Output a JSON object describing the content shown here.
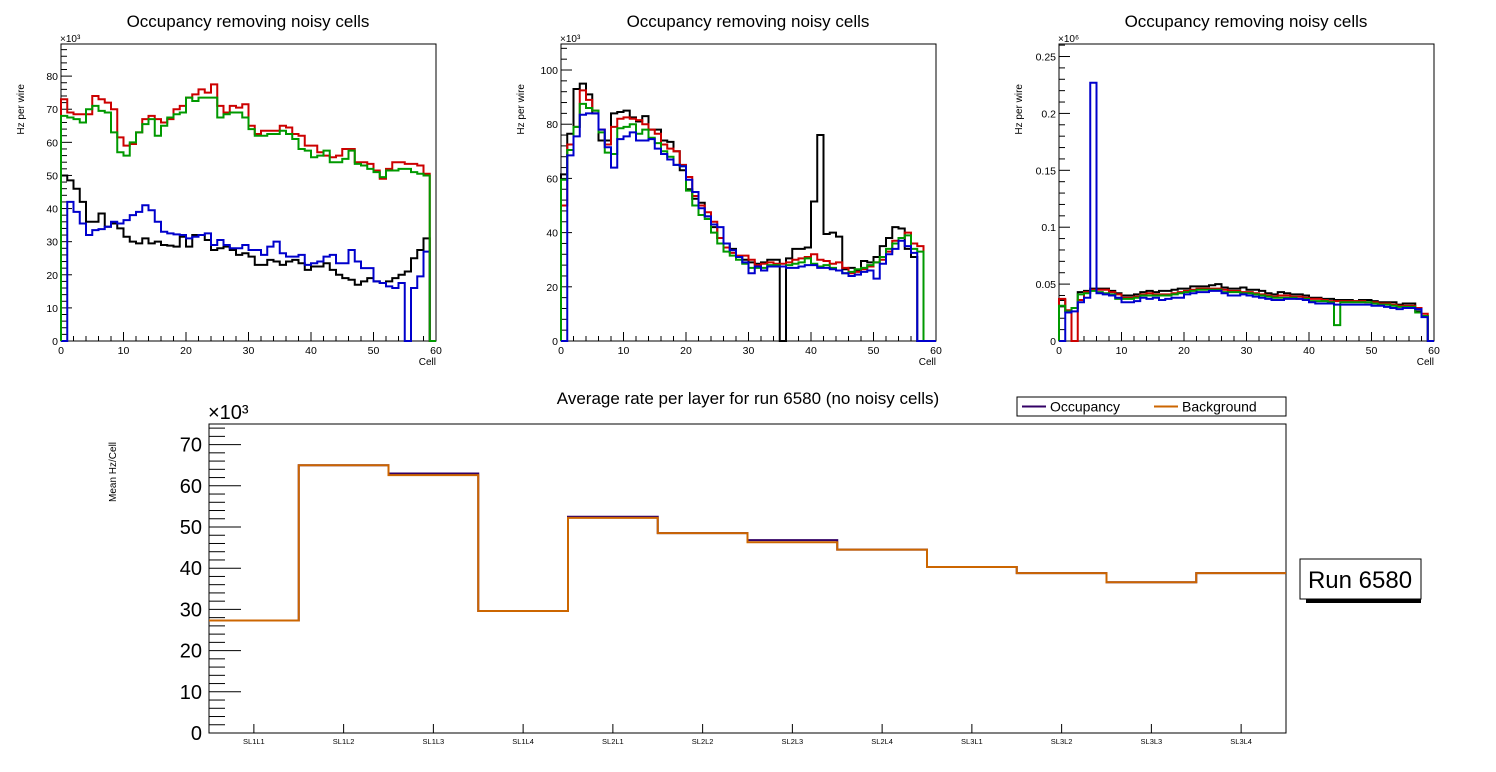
{
  "chart_data": [
    {
      "type": "line",
      "step": true,
      "title": "Occupancy removing noisy cells",
      "xlabel": "Cell",
      "ylabel": "Hz per wire",
      "yexponent": "×10³",
      "xlim": [
        0,
        60
      ],
      "ylim": [
        0,
        89.7
      ],
      "xticks": [
        0,
        10,
        20,
        30,
        40,
        50,
        60
      ],
      "yticks": [
        0,
        10,
        20,
        30,
        40,
        50,
        60,
        70,
        80
      ],
      "ytick_labels": [
        "0",
        "10",
        "20",
        "30",
        "40",
        "50",
        "60",
        "70",
        "80"
      ],
      "series": [
        {
          "name": "black",
          "color": "#000000",
          "values": [
            50,
            48.5,
            46,
            42,
            36,
            36,
            38.5,
            34.5,
            35.5,
            34,
            31.5,
            30,
            29.5,
            31,
            29.5,
            30,
            29,
            28.8,
            28.5,
            31.5,
            28.5,
            32,
            32,
            30.5,
            27.5,
            28,
            28.5,
            27.5,
            26,
            26.5,
            25.5,
            23,
            23,
            24.5,
            24,
            23,
            24,
            24.5,
            23.5,
            21.5,
            22.5,
            22.5,
            23.5,
            21.5,
            20,
            19,
            18.5,
            17,
            18,
            19,
            18,
            17.5,
            18,
            19,
            20,
            21,
            25,
            27.5,
            31,
            0
          ]
        },
        {
          "name": "blue",
          "color": "#0000cc",
          "values": [
            0,
            42,
            39,
            35.5,
            32,
            33.5,
            33.8,
            34.5,
            36,
            35.5,
            36.5,
            38,
            39,
            41,
            39.5,
            36,
            33,
            32.5,
            32.2,
            32,
            31,
            31.5,
            32,
            32.5,
            29,
            30.5,
            29,
            28,
            28,
            29,
            27.5,
            27.5,
            26,
            28.5,
            30,
            26.5,
            25.5,
            25.5,
            26,
            23,
            23.5,
            24,
            25.5,
            26,
            23.5,
            23.5,
            27.5,
            24,
            22,
            22,
            18,
            17.5,
            16.5,
            16,
            17.5,
            0,
            16,
            19.5,
            27,
            0
          ]
        },
        {
          "name": "red",
          "color": "#cc0000",
          "values": [
            73,
            69,
            68.5,
            68.5,
            68.5,
            74,
            73,
            72,
            70,
            61.5,
            59,
            59.5,
            63,
            67,
            68,
            67,
            66,
            67,
            70,
            71,
            73.5,
            74.5,
            76,
            75,
            77.5,
            71,
            69,
            71,
            70.5,
            71.5,
            65,
            62.5,
            63.5,
            63.5,
            63.5,
            65,
            64.5,
            62.5,
            62,
            59,
            59,
            57,
            56,
            55.5,
            56,
            58,
            58,
            54,
            54,
            53.5,
            51.5,
            49,
            52,
            54,
            54,
            53.5,
            53.5,
            53,
            50.5,
            0
          ]
        },
        {
          "name": "green",
          "color": "#009900",
          "values": [
            68,
            67.5,
            67,
            66,
            70,
            71,
            69.5,
            69,
            63,
            57,
            56,
            60,
            63,
            65.5,
            67,
            62,
            65,
            67.5,
            68.5,
            69,
            73.5,
            72.5,
            73.5,
            73.5,
            73.5,
            67.5,
            68.5,
            69,
            69,
            67.5,
            64,
            62,
            62,
            62.5,
            62.5,
            63.5,
            62.5,
            61,
            58,
            57.5,
            55.5,
            56,
            57.5,
            54,
            54,
            55,
            57.5,
            53.5,
            53,
            52,
            51,
            49.5,
            51.5,
            51.5,
            52,
            52,
            51,
            50.5,
            50,
            0
          ]
        }
      ]
    },
    {
      "type": "line",
      "step": true,
      "title": "Occupancy removing noisy cells",
      "xlabel": "Cell",
      "ylabel": "Hz per wire",
      "yexponent": "×10³",
      "xlim": [
        0,
        60
      ],
      "ylim": [
        0,
        109.6
      ],
      "xticks": [
        0,
        10,
        20,
        30,
        40,
        50,
        60
      ],
      "yticks": [
        0,
        20,
        40,
        60,
        80,
        100
      ],
      "ytick_labels": [
        "0",
        "20",
        "40",
        "60",
        "80",
        "100"
      ],
      "series": [
        {
          "name": "black",
          "color": "#000000",
          "values": [
            61.5,
            76.5,
            93,
            95,
            91,
            84,
            74,
            74,
            84,
            84.5,
            85,
            82.5,
            81,
            83,
            78,
            78,
            74,
            73.5,
            70,
            63,
            56,
            52.5,
            51,
            46,
            42,
            38,
            36,
            34,
            31,
            30,
            29,
            28.5,
            29,
            30,
            30,
            0,
            30.5,
            34,
            34,
            34.5,
            51.5,
            76,
            39.5,
            40,
            38.5,
            26.5,
            27,
            26,
            29.5,
            29,
            31,
            35,
            38,
            42,
            41.5,
            34,
            31,
            0,
            0,
            0
          ]
        },
        {
          "name": "red",
          "color": "#cc0000",
          "values": [
            50,
            72.5,
            79,
            92.5,
            89,
            85,
            78,
            72.5,
            79,
            82,
            82.5,
            82,
            81.5,
            80,
            78,
            76.5,
            72.5,
            71,
            70,
            65,
            60.5,
            53.5,
            50,
            47.5,
            44,
            38,
            34.5,
            32.5,
            31.5,
            31.5,
            30,
            28,
            28.5,
            29,
            28.5,
            28.5,
            29,
            30,
            30.5,
            31,
            32,
            30,
            29.5,
            28.5,
            29,
            27,
            25,
            25.5,
            26.5,
            27.5,
            29,
            30,
            33,
            37,
            38,
            40,
            36,
            35,
            0,
            0
          ]
        },
        {
          "name": "green",
          "color": "#009900",
          "values": [
            59.5,
            70.5,
            79,
            87.5,
            86,
            85,
            77,
            69.5,
            69,
            78.5,
            79,
            80,
            76.5,
            78,
            75,
            73,
            70,
            68,
            65,
            64.5,
            55.5,
            50,
            46.5,
            45,
            40,
            36,
            33,
            31.5,
            30,
            28.5,
            27,
            27,
            27,
            28,
            28,
            27.5,
            28,
            28.5,
            29,
            30.5,
            28.5,
            27.5,
            28,
            27,
            26,
            25,
            25.5,
            26.5,
            27,
            28,
            29,
            31,
            34,
            36,
            38,
            39,
            34,
            33,
            0,
            0
          ]
        },
        {
          "name": "blue",
          "color": "#0000cc",
          "values": [
            0,
            68.5,
            75.5,
            83.5,
            84,
            84,
            78,
            71.5,
            64,
            74.5,
            75.5,
            77,
            74,
            74,
            74.5,
            71,
            69,
            67,
            65,
            64.5,
            59.5,
            55,
            49,
            46,
            43,
            42,
            36,
            33.5,
            31,
            29,
            25,
            27.5,
            26,
            27.5,
            27.5,
            27.5,
            27,
            27,
            27.5,
            28,
            28,
            27,
            27,
            26.5,
            26,
            25,
            24,
            24.5,
            25.5,
            26,
            23,
            28.5,
            32,
            34,
            37,
            35,
            32.5,
            0,
            0,
            0
          ]
        }
      ]
    },
    {
      "type": "line",
      "step": true,
      "title": "Occupancy removing noisy cells",
      "xlabel": "Cell",
      "ylabel": "Hz per wire",
      "yexponent": "×10⁶",
      "xlim": [
        0,
        60
      ],
      "ylim": [
        0,
        0.261
      ],
      "xticks": [
        0,
        10,
        20,
        30,
        40,
        50,
        60
      ],
      "yticks": [
        0,
        0.05,
        0.1,
        0.15,
        0.2,
        0.25
      ],
      "ytick_labels": [
        "0",
        "0.05",
        "0.1",
        "0.15",
        "0.2",
        "0.25"
      ],
      "series": [
        {
          "name": "black",
          "color": "#000000",
          "values": [
            0.036,
            0.026,
            0.029,
            0.043,
            0.044,
            0.046,
            0.046,
            0.046,
            0.044,
            0.042,
            0.04,
            0.04,
            0.041,
            0.043,
            0.044,
            0.043,
            0.044,
            0.044,
            0.045,
            0.046,
            0.046,
            0.048,
            0.048,
            0.048,
            0.049,
            0.05,
            0.047,
            0.046,
            0.046,
            0.047,
            0.045,
            0.045,
            0.044,
            0.042,
            0.041,
            0.043,
            0.042,
            0.041,
            0.041,
            0.04,
            0.038,
            0.038,
            0.037,
            0.037,
            0.036,
            0.036,
            0.036,
            0.035,
            0.036,
            0.036,
            0.035,
            0.034,
            0.034,
            0.034,
            0.032,
            0.033,
            0.033,
            0.026,
            0.022,
            0
          ]
        },
        {
          "name": "red",
          "color": "#cc0000",
          "values": [
            0.037,
            0.027,
            0,
            0.036,
            0.043,
            0.045,
            0.045,
            0.045,
            0.043,
            0.041,
            0.038,
            0.038,
            0.039,
            0.041,
            0.042,
            0.041,
            0.041,
            0.041,
            0.042,
            0.043,
            0.044,
            0.045,
            0.046,
            0.046,
            0.046,
            0.046,
            0.045,
            0.044,
            0.044,
            0.043,
            0.043,
            0.042,
            0.041,
            0.04,
            0.039,
            0.04,
            0.04,
            0.039,
            0.039,
            0.038,
            0.037,
            0.037,
            0.036,
            0.035,
            0.035,
            0.035,
            0.035,
            0.035,
            0.035,
            0.034,
            0.034,
            0.033,
            0.033,
            0.032,
            0.031,
            0.031,
            0.031,
            0.029,
            0.024,
            0
          ]
        },
        {
          "name": "green",
          "color": "#009900",
          "values": [
            0.031,
            0.026,
            0.029,
            0.041,
            0.042,
            0.044,
            0.043,
            0.042,
            0.041,
            0.037,
            0.037,
            0.037,
            0.038,
            0.04,
            0.04,
            0.04,
            0.04,
            0.04,
            0.041,
            0.042,
            0.043,
            0.044,
            0.045,
            0.045,
            0.045,
            0.045,
            0.043,
            0.043,
            0.043,
            0.042,
            0.042,
            0.041,
            0.04,
            0.039,
            0.038,
            0.038,
            0.038,
            0.038,
            0.037,
            0.037,
            0.035,
            0.035,
            0.035,
            0.034,
            0.014,
            0.034,
            0.034,
            0.034,
            0.034,
            0.034,
            0.033,
            0.032,
            0.032,
            0.031,
            0.03,
            0.03,
            0.03,
            0.025,
            0.022,
            0
          ]
        },
        {
          "name": "blue",
          "color": "#0000cc",
          "values": [
            0,
            0.025,
            0.026,
            0.034,
            0.038,
            0.227,
            0.042,
            0.041,
            0.04,
            0.038,
            0.034,
            0.034,
            0.035,
            0.038,
            0.037,
            0.038,
            0.036,
            0.037,
            0.038,
            0.038,
            0.041,
            0.042,
            0.043,
            0.043,
            0.044,
            0.044,
            0.042,
            0.04,
            0.04,
            0.041,
            0.04,
            0.039,
            0.038,
            0.037,
            0.036,
            0.036,
            0.037,
            0.037,
            0.037,
            0.036,
            0.034,
            0.033,
            0.033,
            0.033,
            0.032,
            0.032,
            0.032,
            0.032,
            0.032,
            0.032,
            0.031,
            0.031,
            0.03,
            0.029,
            0.028,
            0.029,
            0.029,
            0.028,
            0.021,
            0
          ]
        }
      ]
    },
    {
      "type": "line",
      "step": true,
      "title": "Average rate per layer for run 6580 (no noisy cells)",
      "xlabel": "",
      "ylabel": "Mean Hz/Cell",
      "yexponent": "×10³",
      "categories": [
        "SL1L1",
        "SL1L2",
        "SL1L3",
        "SL1L4",
        "SL2L1",
        "SL2L2",
        "SL2L3",
        "SL2L4",
        "SL3L1",
        "SL3L2",
        "SL3L3",
        "SL3L4"
      ],
      "ylim": [
        0,
        75
      ],
      "yticks": [
        0,
        10,
        20,
        30,
        40,
        50,
        60,
        70
      ],
      "ytick_labels": [
        "0",
        "10",
        "20",
        "30",
        "40",
        "50",
        "60",
        "70"
      ],
      "legend": {
        "placement": "top-right",
        "entries": [
          "Occupancy",
          "Background"
        ]
      },
      "series": [
        {
          "name": "Occupancy",
          "color": "#330066",
          "values": [
            27.3,
            65.0,
            63.0,
            29.6,
            52.5,
            48.5,
            46.8,
            44.5,
            40.3,
            38.8,
            36.6,
            38.8
          ]
        },
        {
          "name": "Background",
          "color": "#cc6600",
          "values": [
            27.3,
            65.0,
            62.6,
            29.6,
            52.2,
            48.5,
            46.3,
            44.5,
            40.3,
            38.8,
            36.6,
            38.8
          ]
        }
      ]
    }
  ],
  "annotation": {
    "run_label": "Run 6580"
  }
}
